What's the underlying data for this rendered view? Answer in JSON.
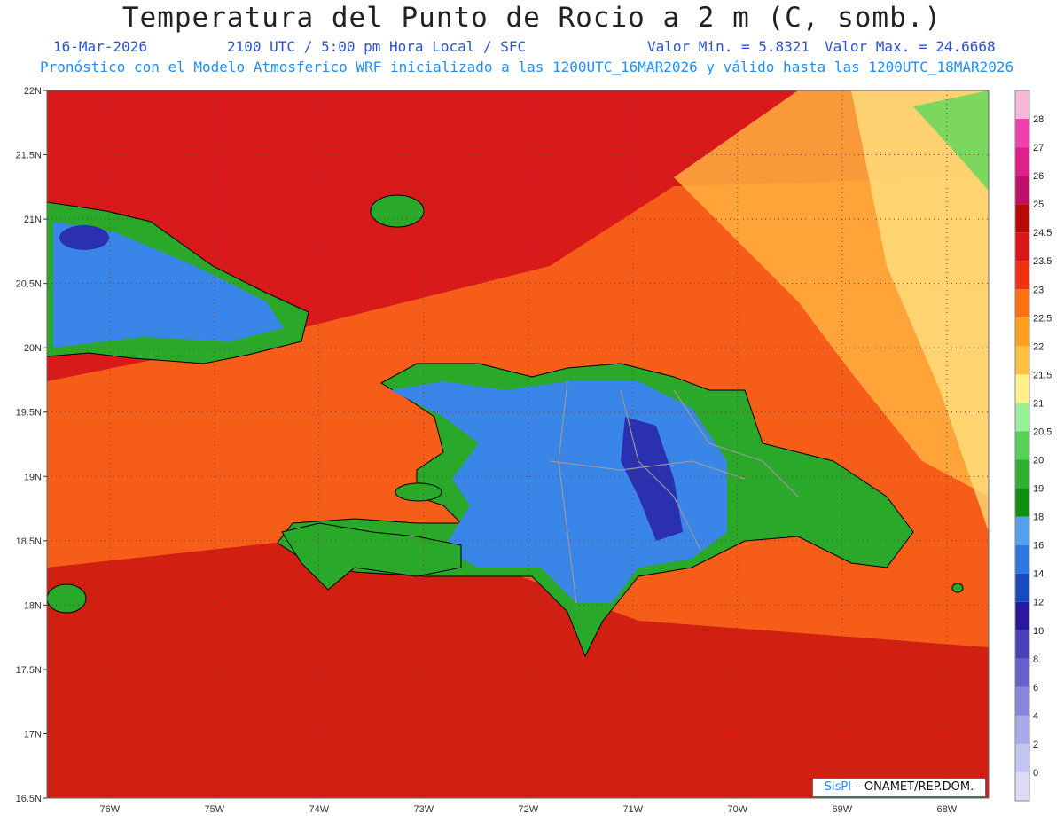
{
  "header": {
    "title": "Temperatura del Punto de Rocio a 2 m (C, somb.)",
    "date": "16-Mar-2026",
    "time": "2100 UTC / 5:00 pm Hora Local / SFC",
    "min_label": "Valor Min. = 5.8321",
    "max_label": "Valor Max. = 24.6668",
    "model_line": "Pronóstico con el Modelo Atmosferico WRF inicializado a las 1200UTC_16MAR2026 y válido hasta las  1200UTC_18MAR2026"
  },
  "credit": {
    "brand": "SisPI",
    "org": " – ONAMET/REP.DOM."
  },
  "map_data": {
    "lat_ticks": [
      "22N",
      "21.5N",
      "21N",
      "20.5N",
      "20N",
      "19.5N",
      "19N",
      "18.5N",
      "18N",
      "17.5N",
      "17N",
      "16.5N"
    ],
    "lon_ticks": [
      "76W",
      "75W",
      "74W",
      "73W",
      "72W",
      "71W",
      "70W",
      "69W",
      "68W"
    ],
    "lat_range": [
      16.5,
      22.0
    ],
    "lon_range": [
      -76.6,
      -67.6
    ],
    "grid": true,
    "colorbar": {
      "labels": [
        "0",
        "2",
        "4",
        "6",
        "8",
        "10",
        "12",
        "14",
        "16",
        "18",
        "19",
        "20",
        "20.5",
        "21",
        "21.5",
        "22",
        "22.5",
        "23",
        "23.5",
        "24.5",
        "25",
        "26",
        "27",
        "28"
      ],
      "colors": [
        "#dcdcf8",
        "#c4c4f0",
        "#aaa8e8",
        "#8a86dc",
        "#6a60cc",
        "#4a40b8",
        "#2a18a0",
        "#1a4ac0",
        "#2e78e0",
        "#56a0f0",
        "#109010",
        "#30b030",
        "#58d058",
        "#98f098",
        "#fff088",
        "#ffc040",
        "#ffa020",
        "#ff7010",
        "#f03010",
        "#d81818",
        "#b80808",
        "#c0106a",
        "#e0208a",
        "#f040b0",
        "#f8b8d8"
      ]
    },
    "colors": {
      "sea_red": "#d81a1a",
      "sea_deep": "#c81010",
      "sea_orange": "#ff7418",
      "sea_light": "#ffb040",
      "sea_yellow": "#ffe888",
      "land_blue": "#3a86e8",
      "land_dark": "#2a30b0",
      "land_green": "#2aa82a",
      "land_light": "#5ad85a",
      "border": "#999999",
      "coast": "#000000"
    }
  }
}
